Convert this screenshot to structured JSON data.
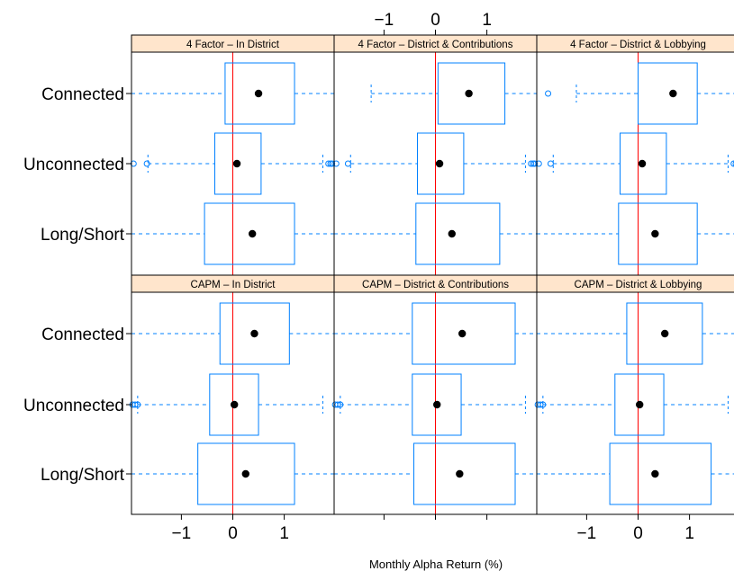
{
  "chart_data": {
    "type": "boxplot",
    "xlabel": "Monthly Alpha Return (%)",
    "ylabel": "",
    "xlim": [
      -1.97,
      1.97
    ],
    "x_ticks": [
      -1,
      0,
      1
    ],
    "reference_line_x": 0,
    "categories": [
      "Connected",
      "Unconnected",
      "Long/Short"
    ],
    "colors": {
      "box": "#0080ff",
      "reference": "#ff0000",
      "median_dot": "#000000",
      "strip": "#ffe5cc",
      "frame": "#000000"
    },
    "panels": [
      {
        "title": "4 Factor – In District",
        "boxes": [
          {
            "category": "Connected",
            "whisker_low": -1.97,
            "q1": -0.15,
            "median": 0.5,
            "q3": 1.2,
            "whisker_high": 1.97,
            "outliers": []
          },
          {
            "category": "Unconnected",
            "whisker_low": -1.65,
            "q1": -0.35,
            "median": 0.08,
            "q3": 0.55,
            "whisker_high": 1.75,
            "outliers": [
              -1.93,
              -1.67,
              1.86,
              1.9,
              1.93
            ]
          },
          {
            "category": "Long/Short",
            "whisker_low": -1.97,
            "q1": -0.55,
            "median": 0.38,
            "q3": 1.2,
            "whisker_high": 1.97,
            "outliers": []
          }
        ]
      },
      {
        "title": "4 Factor – District & Contributions",
        "boxes": [
          {
            "category": "Connected",
            "whisker_low": -1.25,
            "q1": 0.05,
            "median": 0.65,
            "q3": 1.35,
            "whisker_high": 1.97,
            "outliers": []
          },
          {
            "category": "Unconnected",
            "whisker_low": -1.65,
            "q1": -0.35,
            "median": 0.08,
            "q3": 0.55,
            "whisker_high": 1.75,
            "outliers": [
              -1.93,
              -1.7,
              1.86,
              1.9,
              1.93
            ]
          },
          {
            "category": "Long/Short",
            "whisker_low": -1.97,
            "q1": -0.38,
            "median": 0.32,
            "q3": 1.25,
            "whisker_high": 1.97,
            "outliers": []
          }
        ]
      },
      {
        "title": "4 Factor – District & Lobbying",
        "boxes": [
          {
            "category": "Connected",
            "whisker_low": -1.2,
            "q1": 0.0,
            "median": 0.68,
            "q3": 1.15,
            "whisker_high": 1.97,
            "outliers": [
              -1.75
            ]
          },
          {
            "category": "Unconnected",
            "whisker_low": -1.65,
            "q1": -0.35,
            "median": 0.08,
            "q3": 0.55,
            "whisker_high": 1.75,
            "outliers": [
              -1.93,
              -1.7,
              1.86,
              1.9,
              1.93
            ]
          },
          {
            "category": "Long/Short",
            "whisker_low": -1.97,
            "q1": -0.38,
            "median": 0.33,
            "q3": 1.15,
            "whisker_high": 1.97,
            "outliers": []
          }
        ]
      },
      {
        "title": "CAPM – In District",
        "boxes": [
          {
            "category": "Connected",
            "whisker_low": -1.97,
            "q1": -0.25,
            "median": 0.42,
            "q3": 1.1,
            "whisker_high": 1.97,
            "outliers": []
          },
          {
            "category": "Unconnected",
            "whisker_low": -1.85,
            "q1": -0.45,
            "median": 0.03,
            "q3": 0.5,
            "whisker_high": 1.75,
            "outliers": [
              -1.95,
              -1.9,
              -1.85
            ]
          },
          {
            "category": "Long/Short",
            "whisker_low": -1.97,
            "q1": -0.68,
            "median": 0.25,
            "q3": 1.2,
            "whisker_high": 1.97,
            "outliers": []
          }
        ]
      },
      {
        "title": "CAPM – District & Contributions",
        "boxes": [
          {
            "category": "Connected",
            "whisker_low": -1.97,
            "q1": -0.45,
            "median": 0.52,
            "q3": 1.55,
            "whisker_high": 1.97,
            "outliers": []
          },
          {
            "category": "Unconnected",
            "whisker_low": -1.85,
            "q1": -0.45,
            "median": 0.03,
            "q3": 0.5,
            "whisker_high": 1.75,
            "outliers": [
              -1.95,
              -1.9,
              -1.85
            ]
          },
          {
            "category": "Long/Short",
            "whisker_low": -1.97,
            "q1": -0.42,
            "median": 0.47,
            "q3": 1.55,
            "whisker_high": 1.97,
            "outliers": []
          }
        ]
      },
      {
        "title": "CAPM – District & Lobbying",
        "boxes": [
          {
            "category": "Connected",
            "whisker_low": -1.97,
            "q1": -0.22,
            "median": 0.52,
            "q3": 1.25,
            "whisker_high": 1.97,
            "outliers": []
          },
          {
            "category": "Unconnected",
            "whisker_low": -1.85,
            "q1": -0.45,
            "median": 0.03,
            "q3": 0.5,
            "whisker_high": 1.75,
            "outliers": [
              -1.95,
              -1.9,
              -1.85
            ]
          },
          {
            "category": "Long/Short",
            "whisker_low": -1.97,
            "q1": -0.55,
            "median": 0.33,
            "q3": 1.42,
            "whisker_high": 1.97,
            "outliers": []
          }
        ]
      }
    ]
  }
}
